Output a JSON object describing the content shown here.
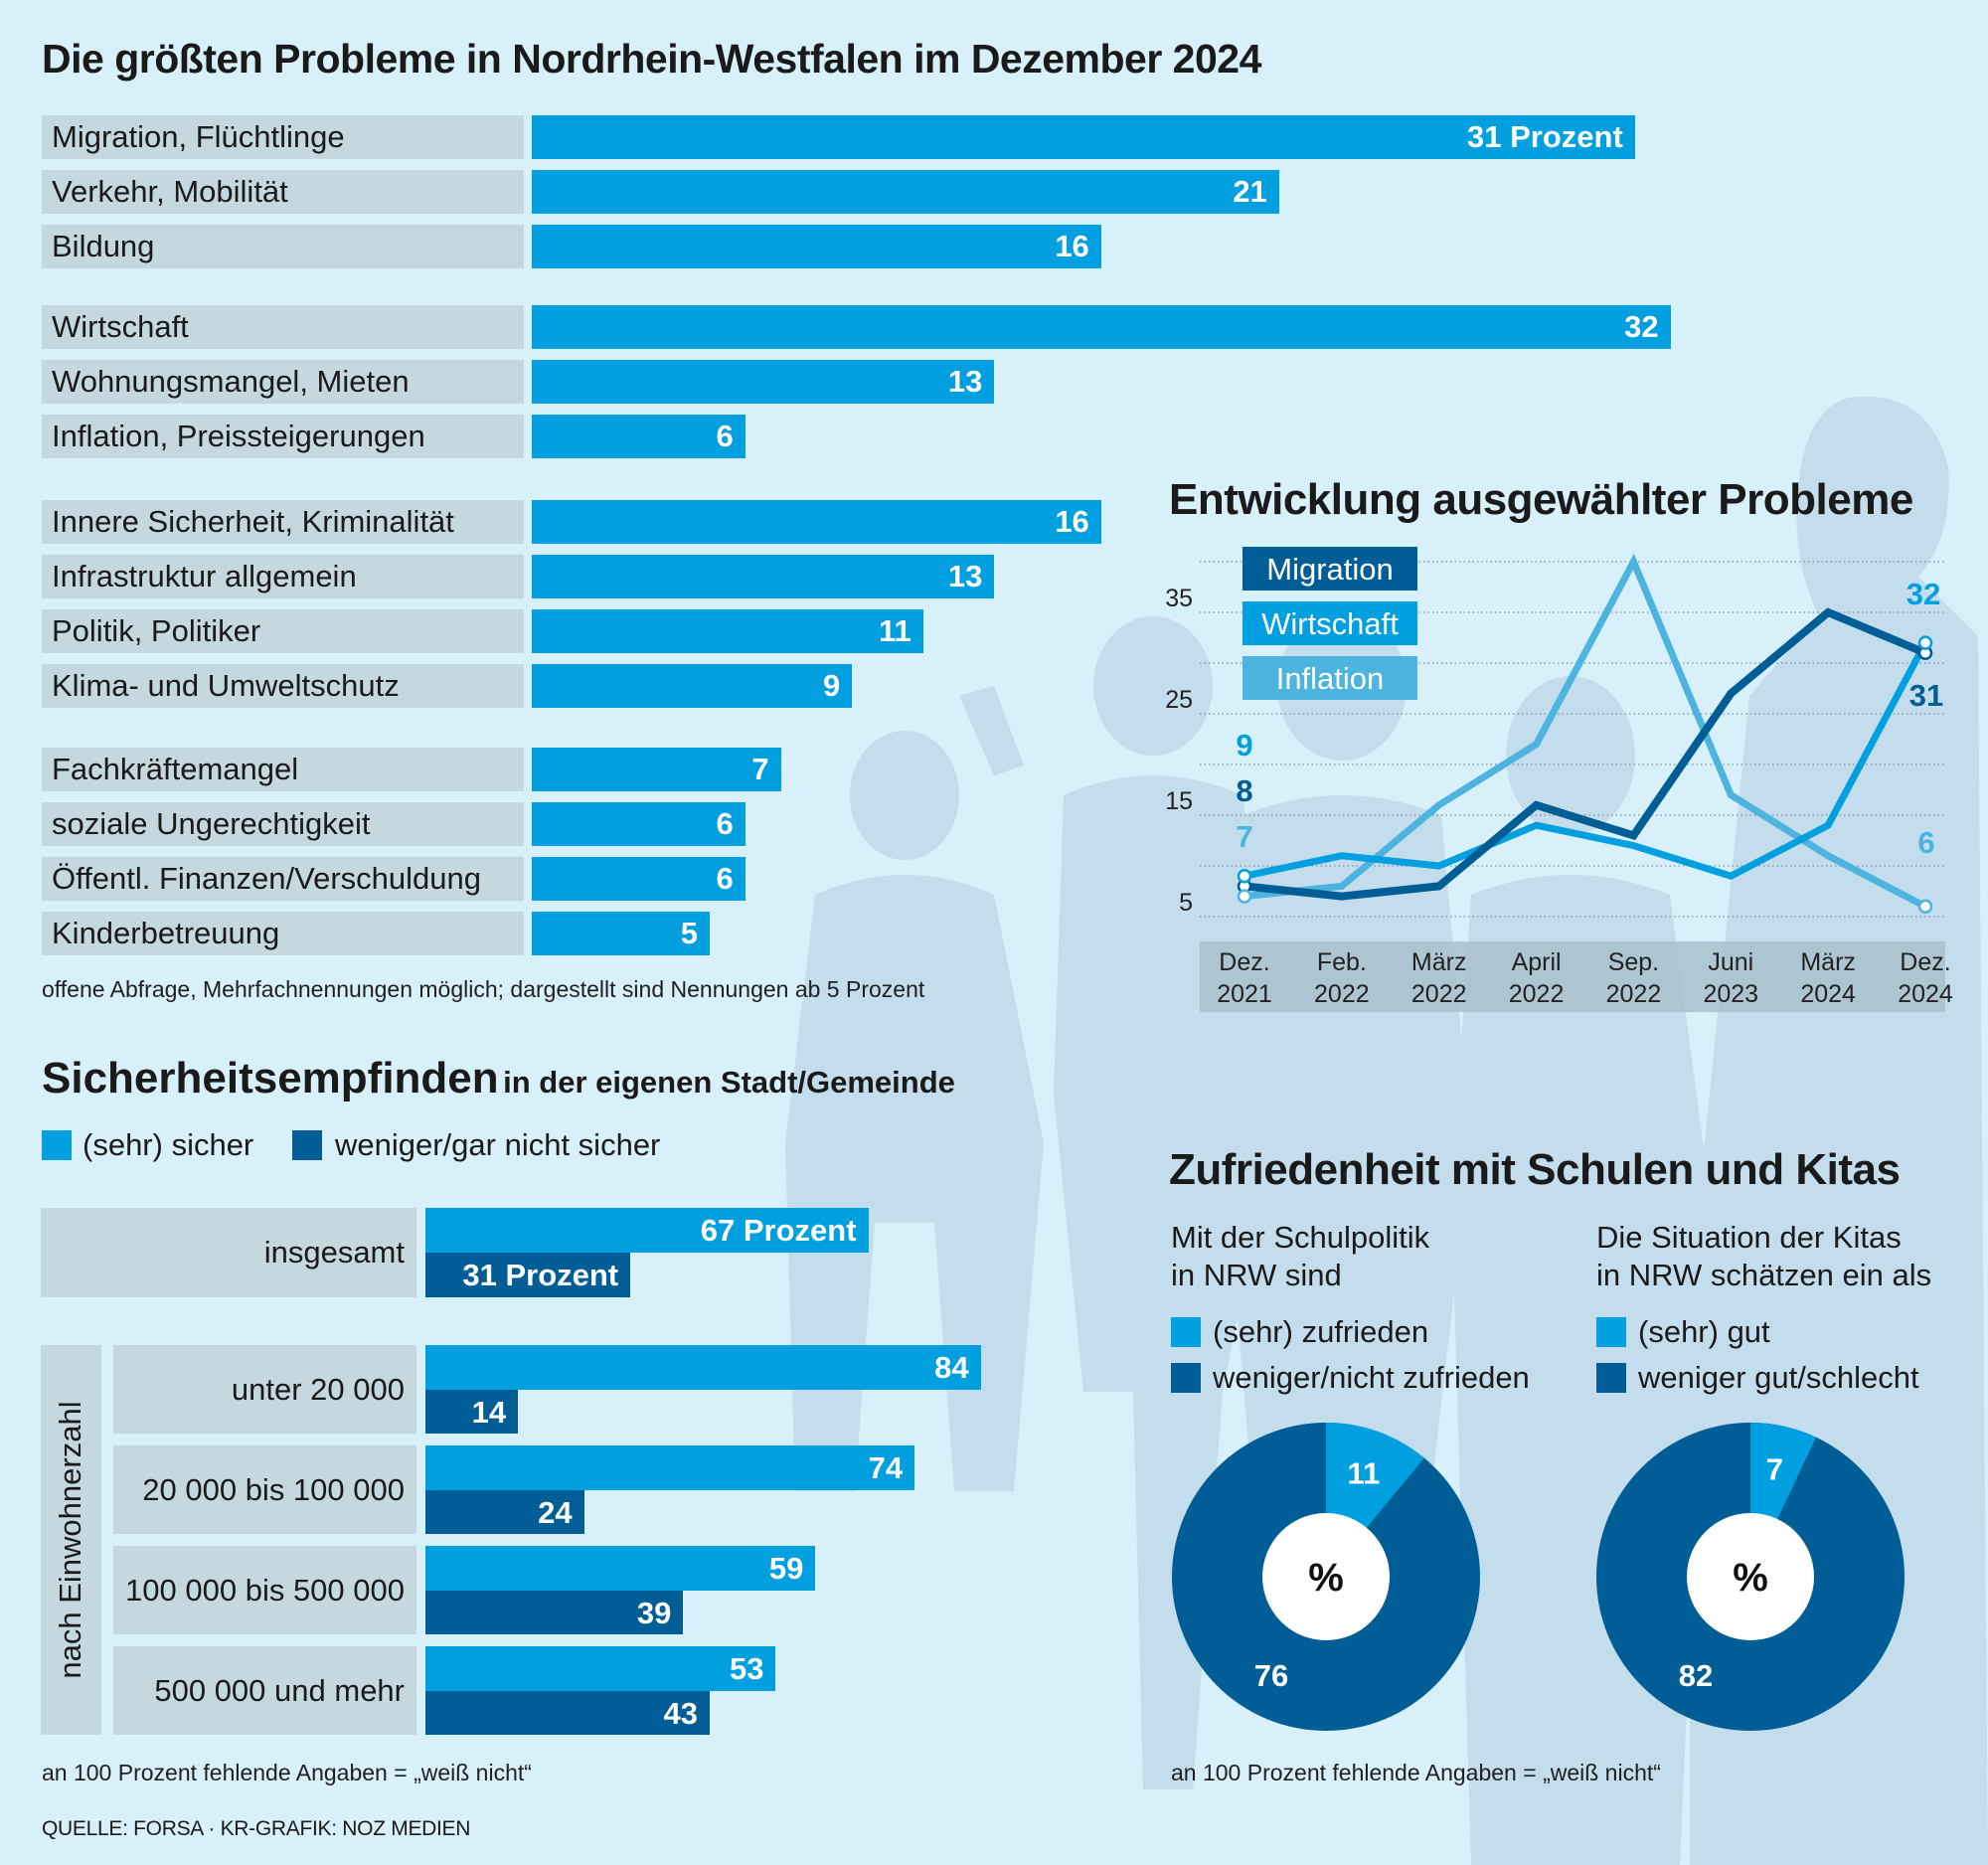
{
  "colors": {
    "background": "#d8f0fa",
    "silhouette": "#c0dcec",
    "label_box": "#c5d8e0",
    "bar_light": "#009fe0",
    "bar_dark": "#005d96",
    "inflation": "#4db3df",
    "axis_box": "#a9c0cc"
  },
  "problems": {
    "title": "Die größten Probleme in Nordrhein-Westfalen im Dezember 2024",
    "footnote": "offene Abfrage, Mehrfachnennungen möglich; dargestellt sind Nennungen ab 5 Prozent",
    "first_value_suffix": " Prozent"
  },
  "trend": {
    "title": "Entwicklung ausgewählter Probleme"
  },
  "security": {
    "title": "Sicherheitsempfinden",
    "subtitle": "in der eigenen Stadt/Gemeinde",
    "legend": [
      {
        "label": "(sehr) sicher",
        "color": "#009fe0"
      },
      {
        "label": "weniger/gar nicht sicher",
        "color": "#005d96"
      }
    ],
    "group_label": "nach Einwohnerzahl",
    "footnote": "an 100 Prozent fehlende Angaben = „weiß nicht“",
    "value_suffix": " Prozent"
  },
  "satisfaction": {
    "title": "Zufriedenheit mit Schulen und Kitas",
    "charts": [
      {
        "subtitle_line1": "Mit der Schulpolitik",
        "subtitle_line2": "in NRW sind",
        "legend": [
          "(sehr) zufrieden",
          "weniger/nicht zufrieden"
        ],
        "center": "%"
      },
      {
        "subtitle_line1": "Die Situation der Kitas",
        "subtitle_line2": "in NRW schätzen ein als",
        "legend": [
          "(sehr) gut",
          "weniger gut/schlecht"
        ],
        "center": "%"
      }
    ],
    "footnote": "an 100 Prozent fehlende Angaben = „weiß nicht“"
  },
  "source": "QUELLE: FORSA · KR-GRAFIK: NOZ MEDIEN",
  "chart_data": [
    {
      "type": "bar",
      "orientation": "horizontal",
      "title": "Die größten Probleme in Nordrhein-Westfalen im Dezember 2024",
      "unit": "Prozent",
      "groups": [
        {
          "categories": [
            "Migration, Flüchtlinge",
            "Verkehr, Mobilität",
            "Bildung"
          ],
          "values": [
            31,
            21,
            16
          ]
        },
        {
          "categories": [
            "Wirtschaft",
            "Wohnungsmangel, Mieten",
            "Inflation, Preissteigerungen"
          ],
          "values": [
            32,
            13,
            6
          ]
        },
        {
          "categories": [
            "Innere Sicherheit, Kriminalität",
            "Infrastruktur allgemein",
            "Politik, Politiker",
            "Klima- und Umweltschutz"
          ],
          "values": [
            16,
            13,
            11,
            9
          ]
        },
        {
          "categories": [
            "Fachkräftemangel",
            "soziale Ungerechtigkeit",
            "Öffentl. Finanzen/Verschuldung",
            "Kinderbetreuung"
          ],
          "values": [
            7,
            6,
            6,
            5
          ]
        }
      ],
      "xlim": [
        0,
        35
      ]
    },
    {
      "type": "line",
      "title": "Entwicklung ausgewählter Probleme",
      "x": [
        "Dez.|2021",
        "Feb.|2022",
        "März|2022",
        "April|2022",
        "Sep.|2022",
        "Juni|2023",
        "März|2024",
        "Dez.|2024"
      ],
      "y_ticks": [
        5,
        15,
        25,
        35
      ],
      "ylim": [
        5,
        40
      ],
      "grid": true,
      "legend_position": "top-left",
      "series": [
        {
          "name": "Migration",
          "color": "#005d96",
          "values": [
            8,
            7,
            8,
            16,
            13,
            27,
            35,
            31
          ],
          "start_label": "8",
          "end_label": "31"
        },
        {
          "name": "Wirtschaft",
          "color": "#009fe0",
          "values": [
            9,
            11,
            10,
            14,
            12,
            9,
            14,
            32
          ],
          "start_label": "9",
          "end_label": "32"
        },
        {
          "name": "Inflation",
          "color": "#4db3df",
          "values": [
            7,
            8,
            16,
            22,
            40,
            17,
            11,
            6
          ],
          "start_label": "7",
          "end_label": "6"
        }
      ]
    },
    {
      "type": "bar",
      "orientation": "horizontal",
      "title": "Sicherheitsempfinden in der eigenen Stadt/Gemeinde",
      "series_names": [
        "(sehr) sicher",
        "weniger/gar nicht sicher"
      ],
      "rows": [
        {
          "label": "insgesamt",
          "values": [
            67,
            31
          ]
        },
        {
          "label": "unter 20 000",
          "values": [
            84,
            14
          ]
        },
        {
          "label": "20 000 bis 100 000",
          "values": [
            74,
            24
          ]
        },
        {
          "label": "100 000 bis 500 000",
          "values": [
            59,
            39
          ]
        },
        {
          "label": "500 000 und mehr",
          "values": [
            53,
            43
          ]
        }
      ],
      "xlim": [
        0,
        100
      ]
    },
    {
      "type": "pie",
      "title": "Mit der Schulpolitik in NRW sind",
      "slices": [
        {
          "label": "(sehr) zufrieden",
          "value": 11
        },
        {
          "label": "weniger/nicht zufrieden",
          "value": 76
        }
      ]
    },
    {
      "type": "pie",
      "title": "Die Situation der Kitas in NRW schätzen ein als",
      "slices": [
        {
          "label": "(sehr) gut",
          "value": 7
        },
        {
          "label": "weniger gut/schlecht",
          "value": 82
        }
      ]
    }
  ]
}
